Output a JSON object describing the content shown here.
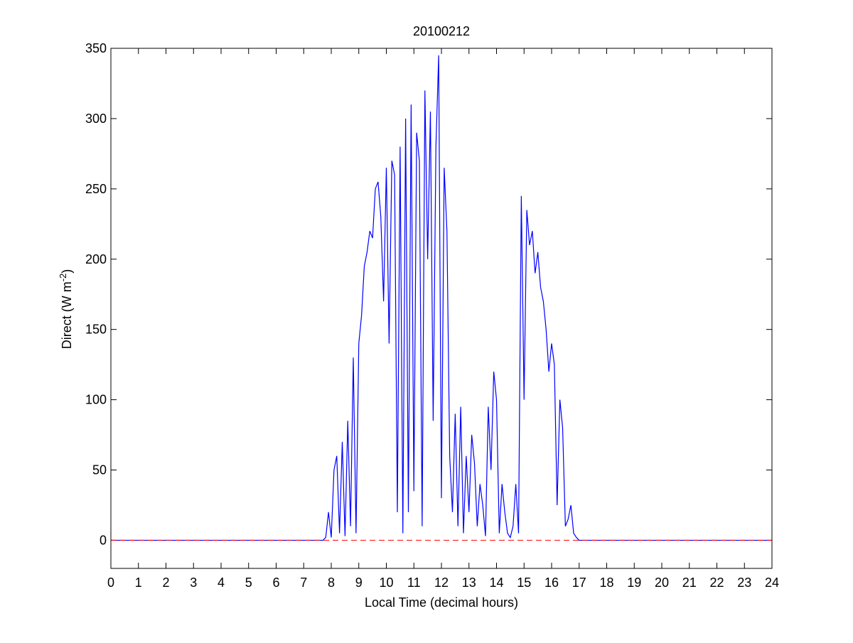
{
  "chart_data": {
    "type": "line",
    "title": "20100212",
    "xlabel": "Local Time (decimal hours)",
    "ylabel": {
      "text": "Direct (W m",
      "superscript": "-2",
      "suffix": ")"
    },
    "x": [
      0,
      7.6,
      7.7,
      7.8,
      7.9,
      8.0,
      8.1,
      8.2,
      8.3,
      8.4,
      8.5,
      8.6,
      8.7,
      8.8,
      8.9,
      9.0,
      9.1,
      9.2,
      9.3,
      9.4,
      9.5,
      9.6,
      9.7,
      9.8,
      9.9,
      10.0,
      10.1,
      10.2,
      10.3,
      10.4,
      10.5,
      10.6,
      10.7,
      10.8,
      10.9,
      11.0,
      11.1,
      11.2,
      11.3,
      11.4,
      11.5,
      11.6,
      11.7,
      11.8,
      11.9,
      12.0,
      12.1,
      12.2,
      12.3,
      12.4,
      12.5,
      12.6,
      12.7,
      12.8,
      12.9,
      13.0,
      13.1,
      13.2,
      13.3,
      13.4,
      13.5,
      13.6,
      13.7,
      13.8,
      13.9,
      14.0,
      14.1,
      14.2,
      14.3,
      14.4,
      14.5,
      14.6,
      14.7,
      14.8,
      14.9,
      15.0,
      15.1,
      15.2,
      15.3,
      15.4,
      15.5,
      15.6,
      15.7,
      15.8,
      15.9,
      16.0,
      16.1,
      16.2,
      16.3,
      16.4,
      16.5,
      16.6,
      16.7,
      16.8,
      16.9,
      17.0,
      17.1,
      17.2,
      24
    ],
    "series": [
      {
        "color": "#0000ff",
        "values": [
          0,
          0,
          0,
          2,
          20,
          2,
          50,
          60,
          5,
          70,
          3,
          85,
          10,
          130,
          5,
          140,
          160,
          195,
          205,
          220,
          215,
          250,
          255,
          230,
          170,
          265,
          140,
          270,
          260,
          20,
          280,
          5,
          300,
          20,
          310,
          35,
          290,
          270,
          10,
          320,
          200,
          305,
          85,
          280,
          345,
          30,
          265,
          220,
          60,
          20,
          90,
          10,
          95,
          5,
          60,
          20,
          75,
          55,
          10,
          40,
          25,
          3,
          95,
          50,
          120,
          100,
          5,
          40,
          20,
          5,
          2,
          10,
          40,
          5,
          245,
          100,
          235,
          210,
          220,
          190,
          205,
          180,
          170,
          150,
          120,
          140,
          125,
          25,
          100,
          80,
          10,
          15,
          25,
          5,
          2,
          0,
          0,
          0,
          0
        ]
      }
    ],
    "hline": {
      "value": 0,
      "color": "#ff0000",
      "style": "dashed"
    },
    "xlim": [
      0,
      24
    ],
    "xticks": [
      0,
      1,
      2,
      3,
      4,
      5,
      6,
      7,
      8,
      9,
      10,
      11,
      12,
      13,
      14,
      15,
      16,
      17,
      18,
      19,
      20,
      21,
      22,
      23,
      24
    ],
    "ylim": [
      -20,
      350
    ],
    "yticks": [
      0,
      50,
      100,
      150,
      200,
      250,
      300,
      350
    ],
    "grid": false
  }
}
